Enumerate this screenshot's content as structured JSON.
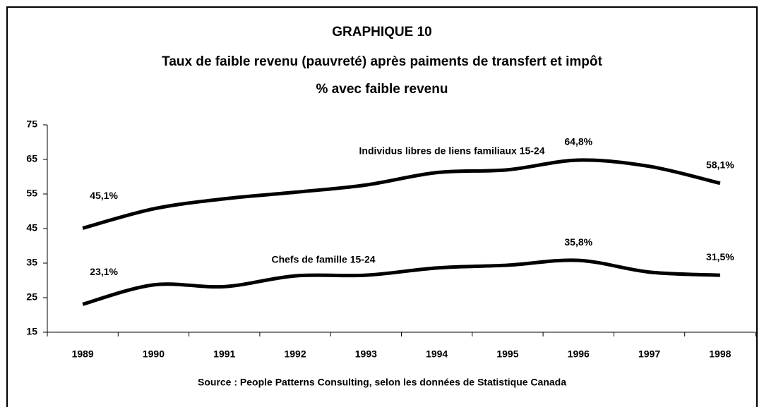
{
  "chart_data": {
    "type": "line",
    "title": "GRAPHIQUE 10",
    "subtitle": "Taux de faible revenu (pauvreté) après paiments de transfert et impôt",
    "y_label": "% avec faible revenu",
    "source": "Source : People Patterns Consulting, selon les données de Statistique Canada",
    "categories": [
      "1989",
      "1990",
      "1991",
      "1992",
      "1993",
      "1994",
      "1995",
      "1996",
      "1997",
      "1998"
    ],
    "series": [
      {
        "name": "Individus libres de liens familiaux 15-24",
        "color": "#000000",
        "values": [
          45.1,
          50.7,
          53.6,
          55.5,
          57.6,
          61.2,
          62.0,
          64.8,
          63.0,
          58.1
        ],
        "value_labels": [
          "45,1%",
          null,
          null,
          null,
          null,
          null,
          null,
          "64,8%",
          null,
          "58,1%"
        ]
      },
      {
        "name": "Chefs de famille 15-24",
        "color": "#000000",
        "values": [
          23.1,
          28.7,
          28.2,
          31.3,
          31.5,
          33.6,
          34.4,
          35.8,
          32.4,
          31.5
        ],
        "value_labels": [
          "23,1%",
          null,
          null,
          null,
          null,
          null,
          null,
          "35,8%",
          null,
          "31,5%"
        ]
      }
    ],
    "ylim": [
      15,
      75
    ],
    "yticks": [
      15,
      25,
      35,
      45,
      55,
      65,
      75
    ],
    "grid": false
  }
}
